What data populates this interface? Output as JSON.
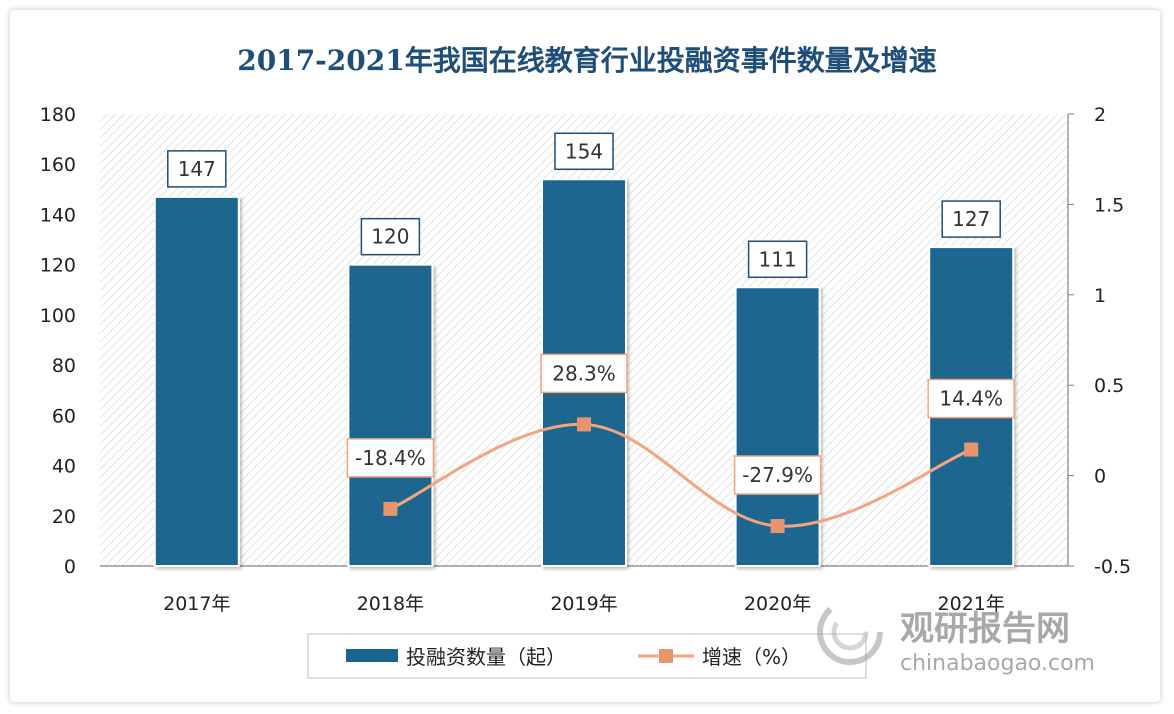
{
  "chart_data": {
    "type": "bar",
    "title": "2017-2021年我国在线教育行业投融资事件数量及增速",
    "categories": [
      "2017年",
      "2018年",
      "2019年",
      "2020年",
      "2021年"
    ],
    "series": [
      {
        "name": "投融资数量（起）",
        "type": "bar",
        "axis": "left",
        "values": [
          147,
          120,
          154,
          111,
          127
        ],
        "labels": [
          "147",
          "120",
          "154",
          "111",
          "127"
        ],
        "color": "#1a6690"
      },
      {
        "name": "增速（%）",
        "type": "line",
        "axis": "right",
        "values": [
          null,
          -0.184,
          0.283,
          -0.279,
          0.144
        ],
        "labels": [
          "",
          "-18.4%",
          "28.3%",
          "-27.9%",
          "14.4%"
        ],
        "color": "#f2a57e"
      }
    ],
    "y_left": {
      "min": 0,
      "max": 180,
      "ticks": [
        0,
        20,
        40,
        60,
        80,
        100,
        120,
        140,
        160,
        180
      ],
      "tick_labels": [
        "0",
        "20",
        "40",
        "60",
        "80",
        "100",
        "120",
        "140",
        "160",
        "180"
      ]
    },
    "y_right": {
      "min": -0.5,
      "max": 2,
      "ticks": [
        -0.5,
        0,
        0.5,
        1,
        1.5,
        2
      ],
      "tick_labels": [
        "-0.5",
        "0",
        "0.5",
        "1",
        "1.5",
        "2"
      ]
    },
    "grid": false,
    "legend_position": "bottom"
  },
  "watermark": {
    "name": "观研报告网",
    "site": "chinabaogao.com",
    "icon": "swirl-logo-icon"
  },
  "colors": {
    "title": "#1f4e79",
    "bar": "#1a6690",
    "line": "#f2a57e",
    "marker": "#e8956b"
  }
}
